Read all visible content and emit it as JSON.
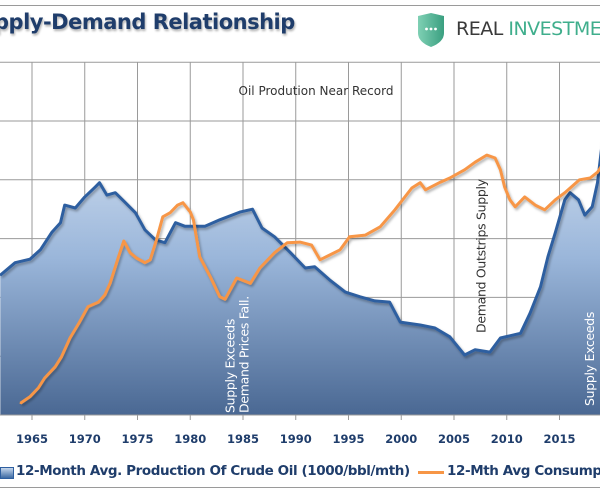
{
  "header": {
    "title": "pply-Demand Relationship",
    "brand_part1": "REAL",
    "brand_part2": "INVESTMENT",
    "logo_icon": "shield-chat-icon"
  },
  "colors": {
    "production": "#2e5fa0",
    "consumption": "#f79646",
    "record_line": "#5b8fd6",
    "title": "#1f3d6b",
    "brand_green": "#3fae8c"
  },
  "chart_data": {
    "type": "area",
    "title": "pply-Demand Relationship",
    "xlabel": "",
    "ylabel": "",
    "xlim": [
      1962,
      2019.2
    ],
    "ylim": [
      0,
      6
    ],
    "y_tick_labels_visible": false,
    "grid": true,
    "legend_position": "bottom",
    "x_ticks": [
      "1965",
      "1970",
      "1975",
      "1980",
      "1985",
      "1990",
      "1995",
      "2000",
      "2005",
      "2010",
      "2015",
      "2"
    ],
    "series": [
      {
        "name": "12-Month Avg. Production Of Crude Oil (1000/bbl/mth)",
        "style": "area-gradient",
        "x": [
          1962.0,
          1963.4,
          1964.8,
          1965.8,
          1966.9,
          1967.7,
          1968.1,
          1969.1,
          1970.0,
          1971.0,
          1971.4,
          1972.1,
          1972.9,
          1973.8,
          1974.8,
          1975.7,
          1976.7,
          1977.6,
          1978.6,
          1979.5,
          1981.4,
          1982.8,
          1984.7,
          1985.9,
          1986.8,
          1988.0,
          1989.5,
          1990.9,
          1991.8,
          1993.2,
          1994.7,
          1996.1,
          1997.5,
          1998.9,
          1999.9,
          2001.8,
          2003.2,
          2004.6,
          2006.0,
          2007.0,
          2008.4,
          2009.4,
          2011.3,
          2012.2,
          2013.2,
          2013.9,
          2014.6,
          2015.5,
          2016.0,
          2016.8,
          2017.4,
          2018.1,
          2018.6,
          2019.2
        ],
        "y": [
          2.38,
          2.59,
          2.65,
          2.81,
          3.11,
          3.27,
          3.57,
          3.52,
          3.71,
          3.88,
          3.95,
          3.74,
          3.78,
          3.62,
          3.44,
          3.15,
          2.98,
          2.93,
          3.27,
          3.21,
          3.21,
          3.32,
          3.45,
          3.5,
          3.18,
          3.03,
          2.76,
          2.5,
          2.52,
          2.3,
          2.09,
          2.01,
          1.94,
          1.92,
          1.58,
          1.53,
          1.48,
          1.33,
          1.02,
          1.11,
          1.07,
          1.31,
          1.39,
          1.73,
          2.18,
          2.69,
          3.1,
          3.66,
          3.78,
          3.66,
          3.4,
          3.54,
          3.95,
          4.85
        ]
      },
      {
        "name": "12-Mth Avg Consumpti",
        "style": "line",
        "x": [
          1963.9,
          1964.8,
          1965.6,
          1966.2,
          1967.2,
          1967.8,
          1968.6,
          1969.5,
          1970.3,
          1971.3,
          1971.9,
          1972.4,
          1973.2,
          1973.7,
          1974.3,
          1974.9,
          1975.7,
          1976.2,
          1976.8,
          1977.4,
          1978.1,
          1978.8,
          1979.3,
          1980.0,
          1980.3,
          1980.9,
          1981.9,
          1982.8,
          1983.3,
          1984.4,
          1985.7,
          1986.6,
          1988.0,
          1989.2,
          1990.4,
          1991.5,
          1992.3,
          1993.2,
          1994.2,
          1995.1,
          1996.6,
          1998.0,
          1999.4,
          2001.0,
          2001.8,
          2002.3,
          2003.7,
          2004.6,
          2006.0,
          2007.0,
          2008.1,
          2008.9,
          2009.4,
          2009.8,
          2010.3,
          2010.8,
          2011.7,
          2012.7,
          2013.6,
          2014.6,
          2015.5,
          2016.9,
          2017.9,
          2018.6,
          2019.2
        ],
        "y": [
          0.2,
          0.31,
          0.46,
          0.63,
          0.82,
          0.99,
          1.31,
          1.58,
          1.84,
          1.92,
          2.04,
          2.24,
          2.69,
          2.96,
          2.76,
          2.67,
          2.59,
          2.64,
          2.98,
          3.37,
          3.44,
          3.57,
          3.61,
          3.45,
          3.32,
          2.69,
          2.35,
          2.01,
          1.97,
          2.33,
          2.24,
          2.5,
          2.76,
          2.93,
          2.94,
          2.89,
          2.64,
          2.72,
          2.81,
          3.03,
          3.06,
          3.2,
          3.49,
          3.86,
          3.95,
          3.83,
          3.96,
          4.03,
          4.17,
          4.3,
          4.42,
          4.37,
          4.17,
          3.88,
          3.66,
          3.54,
          3.71,
          3.57,
          3.49,
          3.66,
          3.78,
          4.0,
          4.03,
          4.13,
          4.29
        ]
      }
    ],
    "reference_line": {
      "y": 5.34,
      "style": "dashed",
      "label": "Oil Prodution Near Record"
    },
    "annotations": [
      {
        "lines": [
          "Supply Exceeds",
          "Demand Prices Fall."
        ],
        "x": 1984.5,
        "rotation": "vertical"
      },
      {
        "lines": [
          "Demand Outstrips Supply"
        ],
        "x": 2007.6,
        "rotation": "vertical"
      },
      {
        "lines": [
          "Supply Exceeds"
        ],
        "x": 2017.9,
        "rotation": "vertical"
      }
    ]
  },
  "legend": {
    "production_label": "12-Month Avg. Production Of Crude Oil (1000/bbl/mth)",
    "consumption_label": "12-Mth Avg Consumpti"
  }
}
